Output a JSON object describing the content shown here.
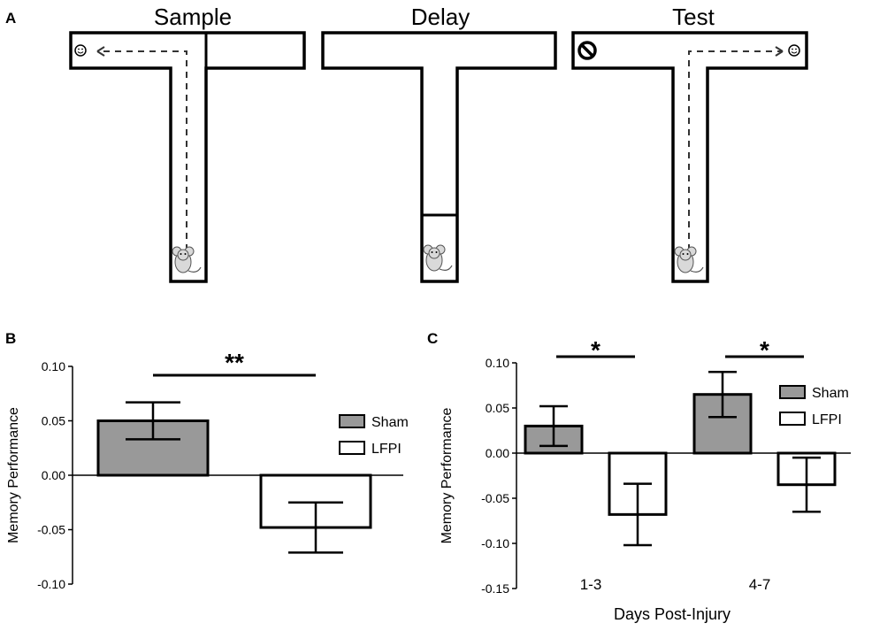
{
  "panel_letters": {
    "a": "A",
    "b": "B",
    "c": "C"
  },
  "maze": {
    "sample_title": "Sample",
    "delay_title": "Delay",
    "test_title": "Test"
  },
  "legend": {
    "sham": "Sham",
    "lfpi": "LFPI"
  },
  "colors": {
    "sham_fill": "#999999",
    "lfpi_fill": "#ffffff",
    "stroke": "#000000"
  },
  "chart_data": [
    {
      "type": "bar",
      "panel": "B",
      "ylabel": "Memory Performance",
      "xlabel": "",
      "ylim": [
        -0.1,
        0.1
      ],
      "yticks": [
        "0.10",
        "0.05",
        "0.00",
        "-0.05",
        "-0.10"
      ],
      "categories": [
        ""
      ],
      "series": [
        {
          "name": "Sham",
          "values": [
            0.05
          ],
          "errors": [
            0.017
          ]
        },
        {
          "name": "LFPI",
          "values": [
            -0.048
          ],
          "errors": [
            0.023
          ]
        }
      ],
      "significance": "**",
      "legend_position": "right"
    },
    {
      "type": "bar",
      "panel": "C",
      "ylabel": "Memory Performance",
      "xlabel": "Days Post-Injury",
      "ylim": [
        -0.15,
        0.1
      ],
      "yticks": [
        "0.10",
        "0.05",
        "0.00",
        "-0.05",
        "-0.10",
        "-0.15"
      ],
      "categories": [
        "1-3",
        "4-7"
      ],
      "series": [
        {
          "name": "Sham",
          "values": [
            0.03,
            0.065
          ],
          "errors": [
            0.022,
            0.025
          ]
        },
        {
          "name": "LFPI",
          "values": [
            -0.068,
            -0.035
          ],
          "errors": [
            0.034,
            0.03
          ]
        }
      ],
      "significance": [
        "*",
        "*"
      ],
      "legend_position": "top-right"
    }
  ]
}
